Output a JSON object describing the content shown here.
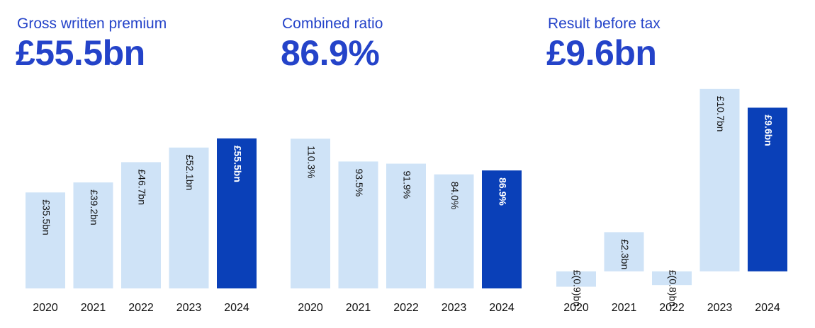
{
  "colors": {
    "light": "#cfe3f7",
    "accent": "#0a40b8",
    "title": "#2443c9",
    "text_dark": "#111111",
    "text_light": "#ffffff"
  },
  "panels": [
    {
      "title": "Gross written premium",
      "headline": "£55.5bn"
    },
    {
      "title": "Combined ratio",
      "headline": "86.9%"
    },
    {
      "title": "Result before tax",
      "headline": "£9.6bn"
    }
  ],
  "chart_data": [
    {
      "type": "bar",
      "title": "Gross written premium",
      "categories": [
        "2020",
        "2021",
        "2022",
        "2023",
        "2024"
      ],
      "values": [
        35.5,
        39.2,
        46.7,
        52.1,
        55.5
      ],
      "labels": [
        "£35.5bn",
        "£39.2bn",
        "£46.7bn",
        "£52.1bn",
        "£55.5bn"
      ],
      "highlight_index": 4,
      "ylim": [
        0,
        57
      ]
    },
    {
      "type": "bar",
      "title": "Combined ratio",
      "categories": [
        "2020",
        "2021",
        "2022",
        "2023",
        "2024"
      ],
      "values": [
        110.3,
        93.5,
        91.9,
        84.0,
        86.9
      ],
      "labels": [
        "110.3%",
        "93.5%",
        "91.9%",
        "84.0%",
        "86.9%"
      ],
      "highlight_index": 4,
      "ylim": [
        0,
        113
      ]
    },
    {
      "type": "bar",
      "title": "Result before tax",
      "categories": [
        "2020",
        "2021",
        "2022",
        "2023",
        "2024"
      ],
      "values": [
        -0.9,
        2.3,
        -0.8,
        10.7,
        9.6
      ],
      "labels": [
        "£(0.9)bn",
        "£2.3bn",
        "£(0.8)bn",
        "£10.7bn",
        "£9.6bn"
      ],
      "highlight_index": 4,
      "ylim": [
        -1.0,
        10.9
      ]
    }
  ]
}
